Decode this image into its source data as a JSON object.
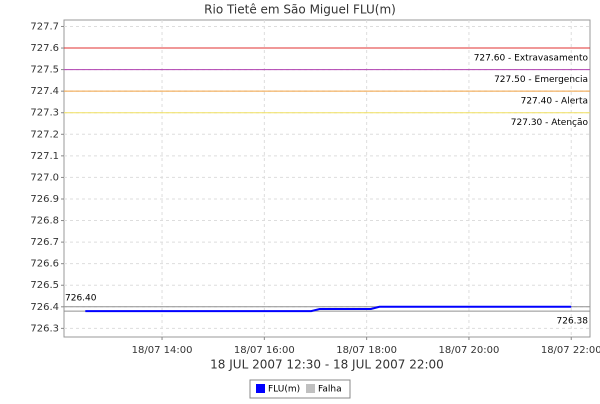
{
  "chart_data": {
    "type": "line",
    "title": "Rio Tietê em São Miguel FLU(m)",
    "x_label": "18 JUL 2007 12:30 - 18 JUL 2007 22:00",
    "x": [
      "18/07 12:30",
      "18/07 16:55",
      "18/07 17:05",
      "18/07 18:05",
      "18/07 18:15",
      "18/07 22:00"
    ],
    "series": [
      {
        "name": "FLU(m)",
        "color": "#0000ff",
        "values": [
          726.38,
          726.38,
          726.39,
          726.39,
          726.4,
          726.4
        ]
      },
      {
        "name": "Falha",
        "color": "#c0c0c0",
        "values": [
          null,
          null,
          null,
          null,
          null,
          null
        ]
      }
    ],
    "xlim": [
      "18/07 12:05",
      "18/07 22:22"
    ],
    "xticks": [
      "18/07 14:00",
      "18/07 16:00",
      "18/07 18:00",
      "18/07 20:00",
      "18/07 22:00"
    ],
    "ylim": [
      726.26,
      727.73
    ],
    "yticks": [
      {
        "value": 726.3,
        "label": "726.3"
      },
      {
        "value": 726.4,
        "label": "726.4"
      },
      {
        "value": 726.5,
        "label": "726.5"
      },
      {
        "value": 726.6,
        "label": "726.6"
      },
      {
        "value": 726.7,
        "label": "726.7"
      },
      {
        "value": 726.8,
        "label": "726.8"
      },
      {
        "value": 726.9,
        "label": "726.9"
      },
      {
        "value": 727.0,
        "label": "727.0"
      },
      {
        "value": 727.1,
        "label": "727.1"
      },
      {
        "value": 727.2,
        "label": "727.2"
      },
      {
        "value": 727.3,
        "label": "727.3"
      },
      {
        "value": 727.4,
        "label": "727.4"
      },
      {
        "value": 727.5,
        "label": "727.5"
      },
      {
        "value": 727.6,
        "label": "727.6"
      },
      {
        "value": 727.7,
        "label": "727.7"
      }
    ],
    "grid": true,
    "reference_lines": [
      {
        "value": 727.6,
        "label": "727.60 - Extravasamento",
        "color": "#e03030"
      },
      {
        "value": 727.5,
        "label": "727.50 - Emergencia",
        "color": "#b040b0"
      },
      {
        "value": 727.4,
        "label": "727.40 - Alerta",
        "color": "#f0a040"
      },
      {
        "value": 727.3,
        "label": "727.30 - Atenção",
        "color": "#f0e060"
      },
      {
        "value": 726.4,
        "label": "726.40",
        "color": "#909090"
      },
      {
        "value": 726.38,
        "label": "726.38",
        "color": "#909090"
      }
    ]
  }
}
